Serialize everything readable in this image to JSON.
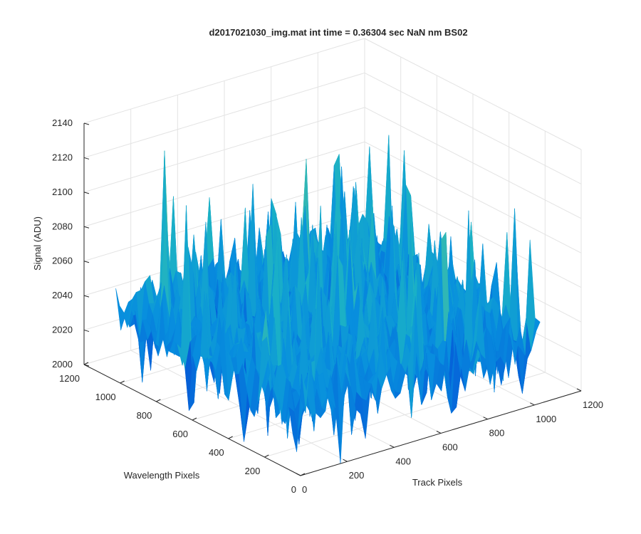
{
  "chart_data": {
    "type": "surface",
    "title": "d2017021030_img.mat int time = 0.36304 sec  NaN nm BS02",
    "xlabel": "Track Pixels",
    "ylabel": "Wavelength Pixels",
    "zlabel": "Signal (ADU)",
    "xlim": [
      0,
      1200
    ],
    "ylim": [
      0,
      1200
    ],
    "zlim": [
      2000,
      2140
    ],
    "x_ticks": [
      "0",
      "200",
      "400",
      "600",
      "800",
      "1000",
      "1200"
    ],
    "y_ticks": [
      "0",
      "200",
      "400",
      "600",
      "800",
      "1000",
      "1200"
    ],
    "z_ticks": [
      "2000",
      "2020",
      "2040",
      "2060",
      "2080",
      "2100",
      "2120",
      "2140"
    ],
    "x_data_range": [
      0,
      1024
    ],
    "y_data_range": [
      0,
      1024
    ],
    "z_typical_range": [
      2015,
      2080
    ],
    "z_mean": 2040,
    "z_max_approx": 2130,
    "z_min_approx": 2000,
    "colormap": "parula",
    "colors": {
      "low": "#0072BD",
      "mid": "#1fb2c0",
      "high": "#d9d23a"
    },
    "grid": true,
    "box": false
  }
}
